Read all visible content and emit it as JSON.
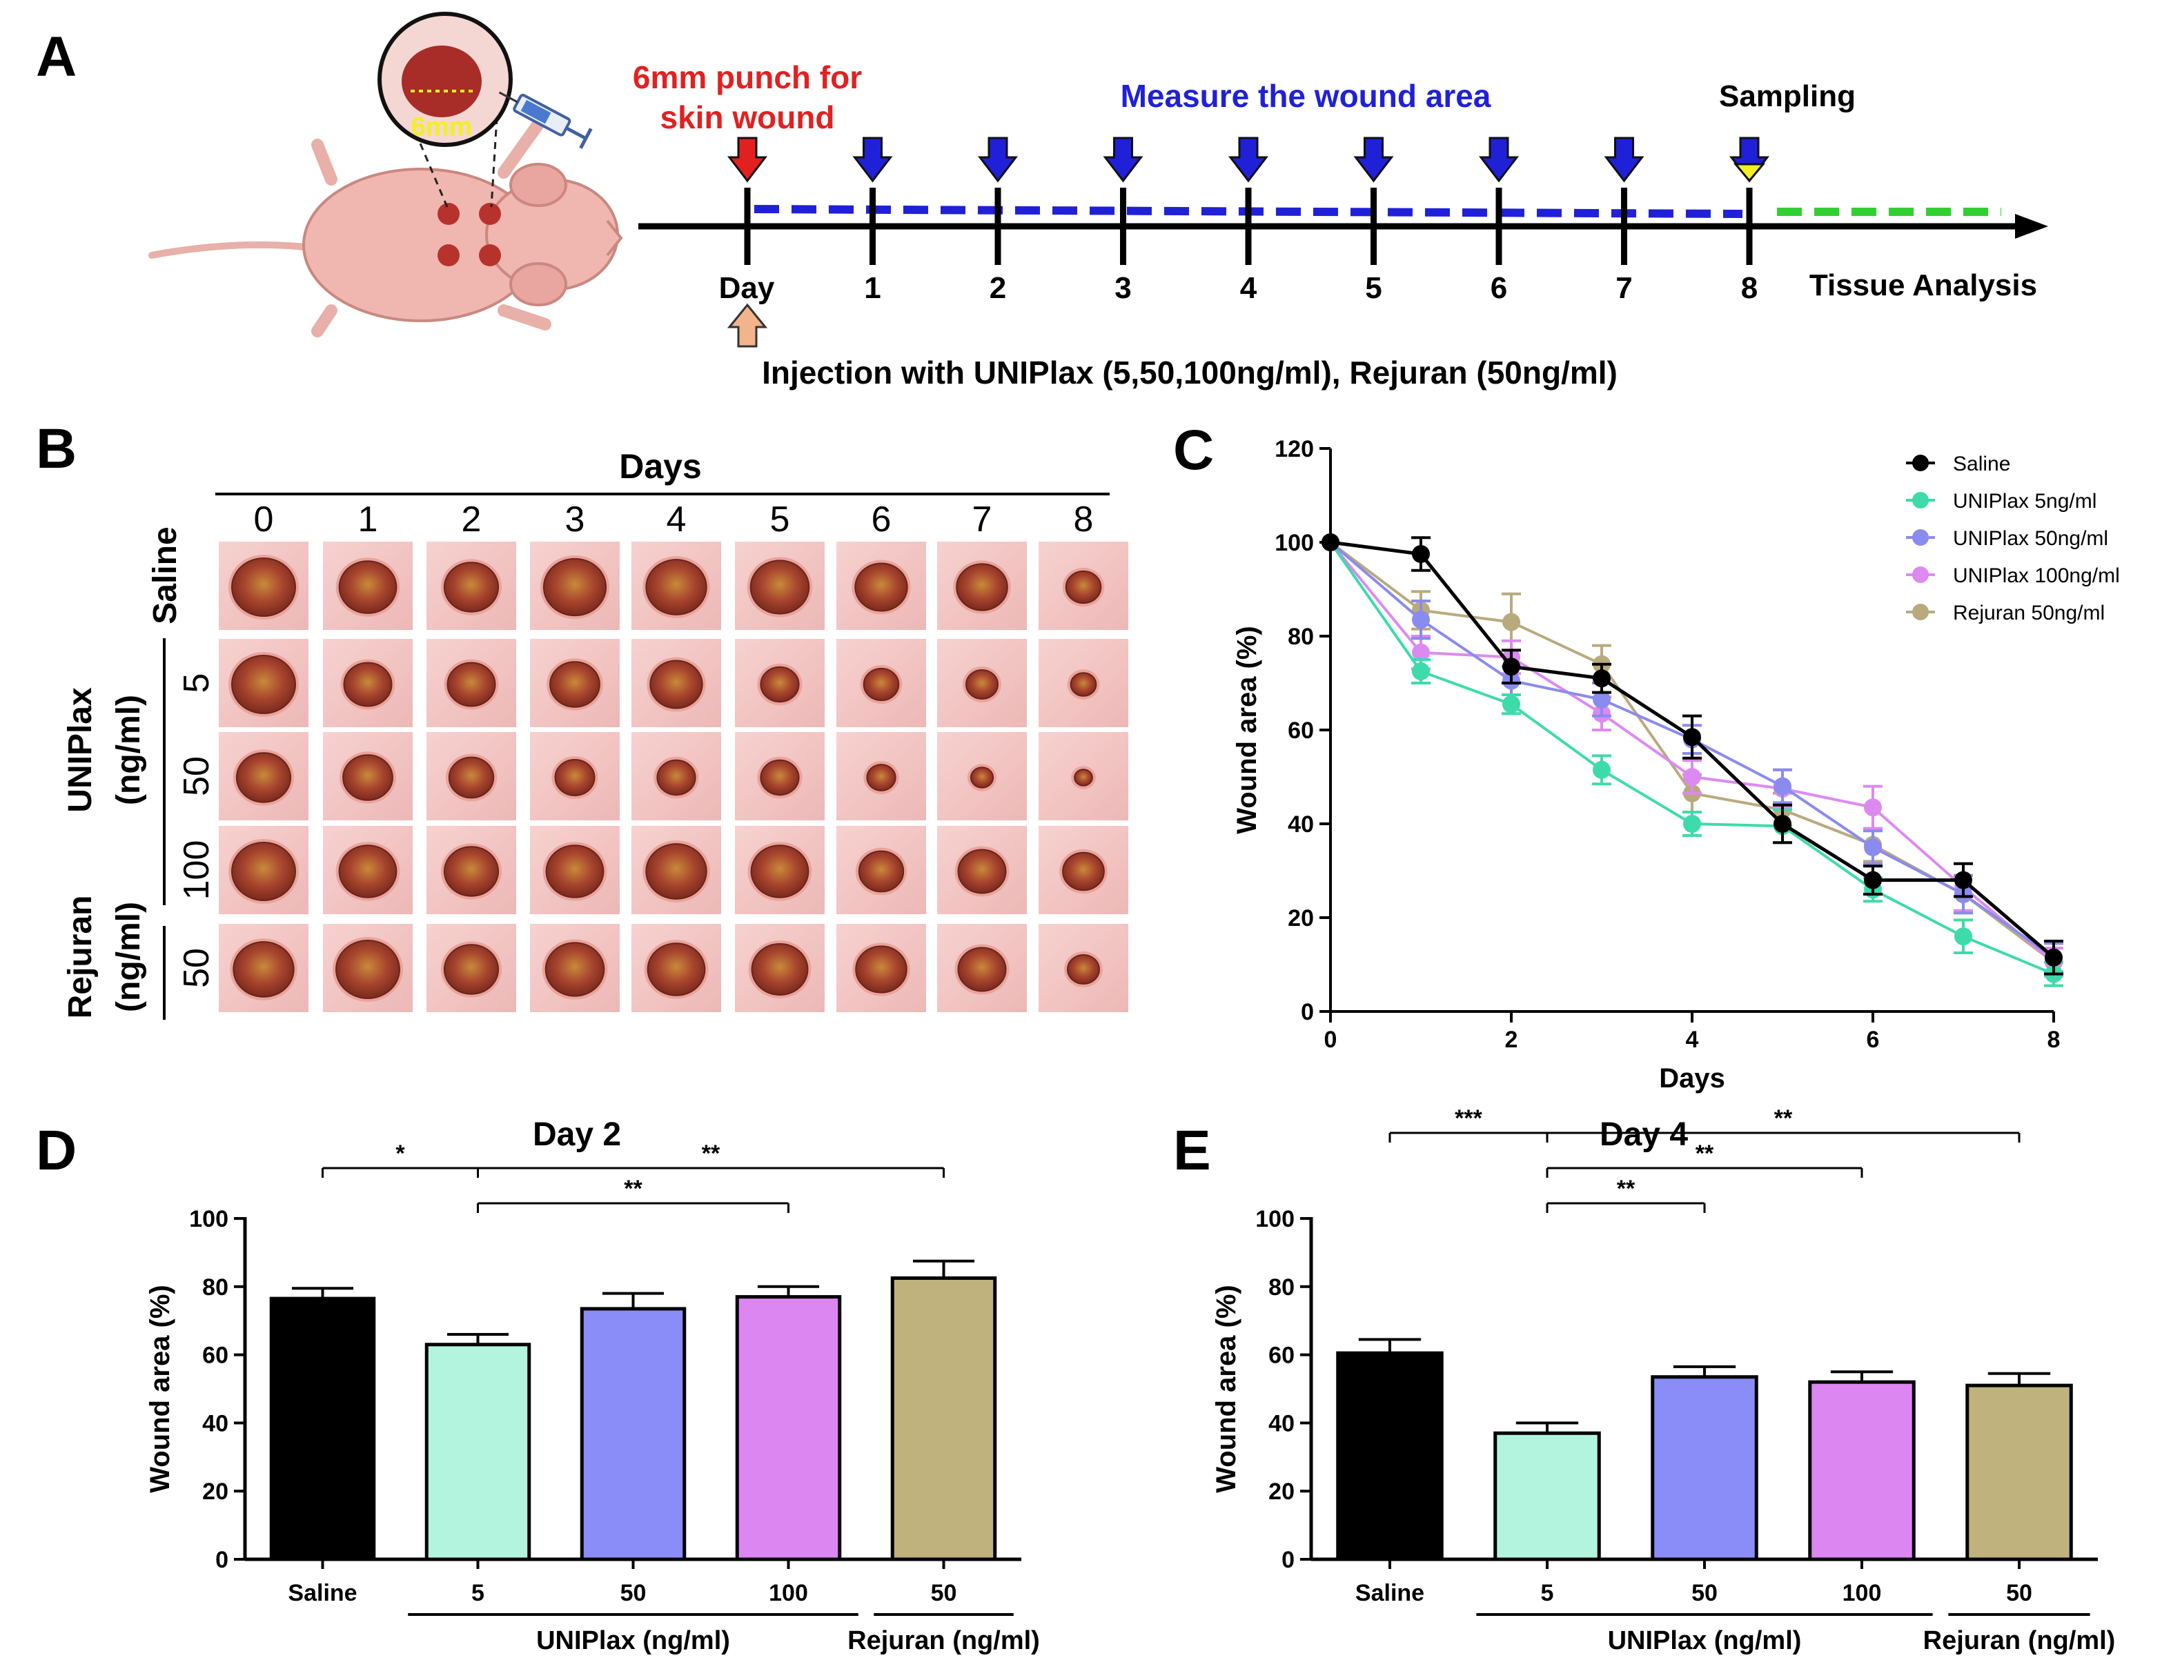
{
  "colors": {
    "saline": "#000000",
    "uniplax5_line": "#3ddbaa",
    "uniplax50_line": "#8a8bee",
    "uniplax100_line": "#dc8af0",
    "rejuran50_line": "#b9aa7e",
    "uniplax5_bar": "#b3f4de",
    "uniplax50_bar": "#8a8cf8",
    "uniplax100_bar": "#dc86f2",
    "rejuran50_bar": "#c0b27d",
    "punch": "#e32020",
    "measure": "#2020d8",
    "analysis": "#30d030",
    "tissue": "#c44a3c",
    "injection_arrow": "#f2b48a",
    "sampling_marker": "#f2f020",
    "inset_label": "#f2f020"
  },
  "panels": {
    "A": "A",
    "B": "B",
    "C": "C",
    "D": "D",
    "E": "E"
  },
  "panelA": {
    "punch_label_line1": "6mm punch for",
    "punch_label_line2": "skin wound",
    "measure_label": "Measure the wound area",
    "sampling_label": "Sampling",
    "day_label": "Day",
    "day_ticks": [
      "1",
      "2",
      "3",
      "4",
      "5",
      "6",
      "7",
      "8"
    ],
    "tissue_label": "Tissue Analysis",
    "injection_label": "Injection with UNIPlax (5,50,100ng/ml), Rejuran (50ng/ml)",
    "inset_label": "6mm",
    "mouse_icon": "mouse-illustration",
    "syringe_icon": "syringe-icon"
  },
  "panelB": {
    "title": "Days",
    "columns": [
      "0",
      "1",
      "2",
      "3",
      "4",
      "5",
      "6",
      "7",
      "8"
    ],
    "group_labels": {
      "saline": "Saline",
      "uniplax": "UNIPlax",
      "uniplax_unit": "(ng/ml)",
      "rejuran": "Rejuran",
      "rejuran_unit": "(ng/ml)"
    },
    "rows": [
      {
        "group": "Saline",
        "dose": "",
        "size_scale": [
          1.0,
          0.9,
          0.85,
          0.98,
          0.95,
          0.92,
          0.82,
          0.8,
          0.55
        ]
      },
      {
        "group": "UNIPlax",
        "dose": "5",
        "size_scale": [
          1.0,
          0.75,
          0.75,
          0.78,
          0.82,
          0.6,
          0.55,
          0.5,
          0.4
        ]
      },
      {
        "group": "UNIPlax",
        "dose": "50",
        "size_scale": [
          0.85,
          0.78,
          0.7,
          0.62,
          0.6,
          0.6,
          0.45,
          0.35,
          0.28
        ]
      },
      {
        "group": "UNIPlax",
        "dose": "100",
        "size_scale": [
          1.0,
          0.9,
          0.85,
          0.9,
          0.95,
          0.9,
          0.7,
          0.75,
          0.65
        ]
      },
      {
        "group": "Rejuran",
        "dose": "50",
        "size_scale": [
          0.95,
          1.0,
          0.85,
          0.92,
          0.9,
          0.88,
          0.8,
          0.75,
          0.5
        ]
      }
    ]
  },
  "chart_data": [
    {
      "id": "C",
      "type": "line",
      "title": "",
      "xlabel": "Days",
      "ylabel": "Wound area (%)",
      "xlim": [
        0,
        8
      ],
      "ylim": [
        0,
        120
      ],
      "xticks": [
        "0",
        "2",
        "4",
        "6",
        "8"
      ],
      "yticks": [
        "0",
        "20",
        "40",
        "60",
        "80",
        "100",
        "120"
      ],
      "xtick_values": [
        0,
        2,
        4,
        6,
        8
      ],
      "ytick_values": [
        0,
        20,
        40,
        60,
        80,
        100,
        120
      ],
      "legend_position": "top-right",
      "x": [
        0,
        1,
        2,
        3,
        4,
        5,
        6,
        7,
        8
      ],
      "series": [
        {
          "name": "Saline",
          "color_key": "saline",
          "values": [
            100,
            97.5,
            73.5,
            71,
            58.5,
            40,
            28,
            28,
            11.5
          ],
          "errors": [
            0,
            3.5,
            3.5,
            3,
            4.5,
            4,
            3,
            3.5,
            3.5
          ]
        },
        {
          "name": "UNIPlax 5ng/ml",
          "color_key": "uniplax5_line",
          "values": [
            100,
            72.5,
            65.5,
            51.5,
            40,
            39.5,
            26,
            16,
            8
          ],
          "errors": [
            0,
            2.5,
            2,
            3,
            2.5,
            3.5,
            2.5,
            3.5,
            2.5
          ]
        },
        {
          "name": "UNIPlax 50ng/ml",
          "color_key": "uniplax50_line",
          "values": [
            100,
            83.5,
            70.5,
            66.5,
            58,
            48,
            35,
            25,
            11.5
          ],
          "errors": [
            0,
            4,
            3,
            3.5,
            3,
            3.5,
            3.5,
            4,
            3
          ]
        },
        {
          "name": "UNIPlax 100ng/ml",
          "color_key": "uniplax100_line",
          "values": [
            100,
            76.5,
            75.5,
            63.5,
            50,
            47.5,
            43.5,
            26.5,
            10.5
          ],
          "errors": [
            0,
            3.5,
            3.5,
            3.5,
            3.5,
            4,
            4.5,
            5,
            3
          ]
        },
        {
          "name": "Rejuran 50ng/ml",
          "color_key": "rejuran50_line",
          "values": [
            100,
            85.5,
            83,
            74,
            46.5,
            43,
            35.5,
            25,
            10.5
          ],
          "errors": [
            0,
            4,
            6,
            4,
            4,
            3.5,
            3.5,
            4,
            3
          ]
        }
      ]
    },
    {
      "id": "D",
      "type": "bar",
      "title": "Day 2",
      "xlabel": "",
      "ylabel": "Wound area (%)",
      "ylim": [
        0,
        100
      ],
      "yticks": [
        "0",
        "20",
        "40",
        "60",
        "80",
        "100"
      ],
      "ytick_values": [
        0,
        20,
        40,
        60,
        80,
        100
      ],
      "categories": [
        "Saline",
        "5",
        "50",
        "100",
        "50"
      ],
      "bar_color_keys": [
        "saline",
        "uniplax5_bar",
        "uniplax50_bar",
        "uniplax100_bar",
        "rejuran50_bar"
      ],
      "values": [
        76.5,
        63,
        73.5,
        77,
        82.5
      ],
      "errors": [
        3,
        3,
        4.5,
        3,
        5
      ],
      "group_labels": [
        {
          "text": "UNIPlax (ng/ml)",
          "from": 1,
          "to": 3
        },
        {
          "text": "Rejuran (ng/ml)",
          "from": 4,
          "to": 4
        }
      ],
      "significance": [
        {
          "from": 0,
          "to": 1,
          "label": "*",
          "level": 1,
          "drop": true
        },
        {
          "from": 1,
          "to": 4,
          "label": "**",
          "level": 1,
          "drop": true
        },
        {
          "from": 1,
          "to": 3,
          "label": "**",
          "level": 0,
          "drop": true
        }
      ]
    },
    {
      "id": "E",
      "type": "bar",
      "title": "Day 4",
      "xlabel": "",
      "ylabel": "Wound area (%)",
      "ylim": [
        0,
        100
      ],
      "yticks": [
        "0",
        "20",
        "40",
        "60",
        "80",
        "100"
      ],
      "ytick_values": [
        0,
        20,
        40,
        60,
        80,
        100
      ],
      "categories": [
        "Saline",
        "5",
        "50",
        "100",
        "50"
      ],
      "bar_color_keys": [
        "saline",
        "uniplax5_bar",
        "uniplax50_bar",
        "uniplax100_bar",
        "rejuran50_bar"
      ],
      "values": [
        60.5,
        37,
        53.5,
        52,
        51
      ],
      "errors": [
        4,
        3,
        3,
        3,
        3.5
      ],
      "group_labels": [
        {
          "text": "UNIPlax (ng/ml)",
          "from": 1,
          "to": 3
        },
        {
          "text": "Rejuran (ng/ml)",
          "from": 4,
          "to": 4
        }
      ],
      "significance": [
        {
          "from": 0,
          "to": 1,
          "label": "***",
          "level": 2,
          "drop": true
        },
        {
          "from": 1,
          "to": 4,
          "label": "**",
          "level": 2,
          "drop": true
        },
        {
          "from": 1,
          "to": 3,
          "label": "**",
          "level": 1,
          "drop": true
        },
        {
          "from": 1,
          "to": 2,
          "label": "**",
          "level": 0,
          "drop": true
        }
      ]
    }
  ]
}
